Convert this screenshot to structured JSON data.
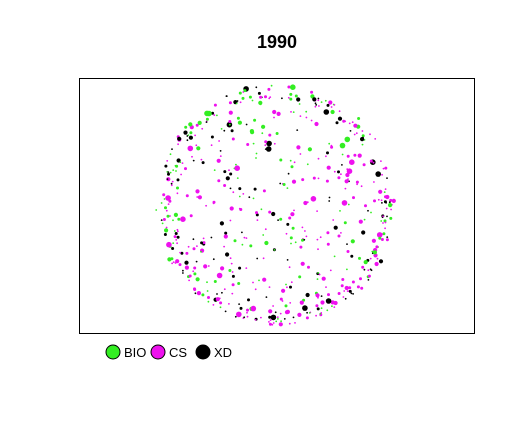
{
  "chart_data": {
    "type": "scatter",
    "title": "1990",
    "xlabel": "",
    "ylabel": "",
    "grid": false,
    "legend_placement": "bottom-left",
    "shape": "circle-cloud",
    "series": [
      {
        "name": "BIO",
        "color": "#33ee22",
        "fraction": 0.24
      },
      {
        "name": "CS",
        "color": "#ee11ee",
        "fraction": 0.46
      },
      {
        "name": "XD",
        "color": "#000000",
        "fraction": 0.3
      }
    ],
    "point_count": 620,
    "seed": 1990
  }
}
